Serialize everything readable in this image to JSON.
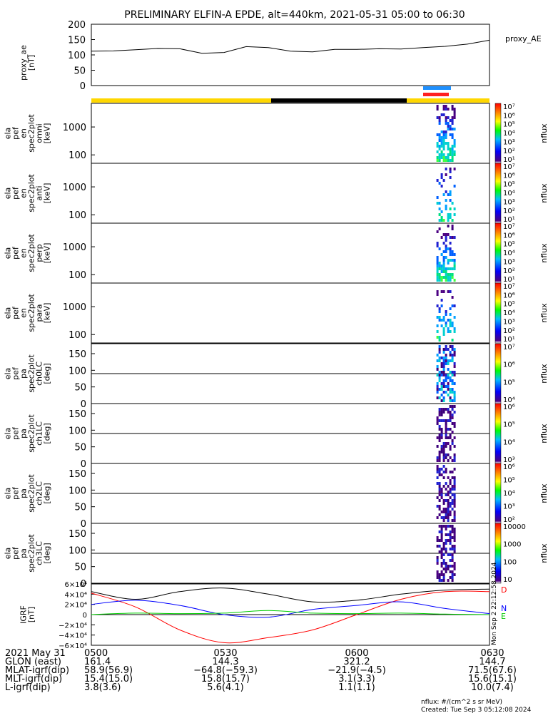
{
  "title": "PRELIMINARY ELFIN-A EPDE, alt=440km, 2021-05-31 05:00 to 06:30",
  "proxy_panel": {
    "ylabel": [
      "proxy_ae",
      "[nT]"
    ],
    "legend": "proxy_AE",
    "ticks": [
      "200",
      "150",
      "100",
      "50",
      "0"
    ]
  },
  "panels": [
    {
      "ylabel": [
        "ela",
        "pef",
        "en",
        "spec2plot",
        "omni",
        "[keV]"
      ],
      "ticks": [
        "1000",
        "100"
      ],
      "cbar_label": "nflux",
      "cbar_ticks": [
        "10⁷",
        "10⁶",
        "10⁵",
        "10⁴",
        "10³",
        "10²",
        "10¹"
      ]
    },
    {
      "ylabel": [
        "ela",
        "pef",
        "en",
        "spec2plot",
        "anti",
        "[keV]"
      ],
      "ticks": [
        "1000",
        "100"
      ],
      "cbar_label": "nflux",
      "cbar_ticks": [
        "10⁷",
        "10⁶",
        "10⁵",
        "10⁴",
        "10³",
        "10²",
        "10¹"
      ]
    },
    {
      "ylabel": [
        "ela",
        "pef",
        "en",
        "spec2plot",
        "perp",
        "[keV]"
      ],
      "ticks": [
        "1000",
        "100"
      ],
      "cbar_label": "nflux",
      "cbar_ticks": [
        "10⁷",
        "10⁶",
        "10⁵",
        "10⁴",
        "10³",
        "10²",
        "10¹"
      ]
    },
    {
      "ylabel": [
        "ela",
        "pef",
        "en",
        "spec2plot",
        "para",
        "[keV]"
      ],
      "ticks": [
        "1000",
        "100"
      ],
      "cbar_label": "nflux",
      "cbar_ticks": [
        "10⁷",
        "10⁶",
        "10⁵",
        "10⁴",
        "10³",
        "10²",
        "10¹"
      ]
    },
    {
      "ylabel": [
        "ela",
        "pef",
        "pa",
        "spec2plot",
        "ch0LC",
        "[deg]"
      ],
      "ticks": [
        "150",
        "100",
        "50",
        "0"
      ],
      "cbar_label": "nflux",
      "cbar_ticks": [
        "10⁷",
        "10⁶",
        "10⁵",
        "10⁴"
      ]
    },
    {
      "ylabel": [
        "ela",
        "pef",
        "pa",
        "spec2plot",
        "ch1LC",
        "[deg]"
      ],
      "ticks": [
        "150",
        "100",
        "50",
        "0"
      ],
      "cbar_label": "nflux",
      "cbar_ticks": [
        "10⁶",
        "10⁵",
        "10⁴",
        "10³"
      ]
    },
    {
      "ylabel": [
        "ela",
        "pef",
        "pa",
        "spec2plot",
        "ch2LC",
        "[deg]"
      ],
      "ticks": [
        "150",
        "100",
        "50",
        "0"
      ],
      "cbar_label": "nflux",
      "cbar_ticks": [
        "10⁶",
        "10⁵",
        "10⁴",
        "10³",
        "10²"
      ]
    },
    {
      "ylabel": [
        "ela",
        "pef",
        "pa",
        "spec2plot",
        "ch3LC",
        "[deg]"
      ],
      "ticks": [
        "150",
        "100",
        "50",
        "0"
      ],
      "cbar_label": "nflux",
      "cbar_ticks": [
        "10000",
        "1000",
        "100",
        "10"
      ]
    }
  ],
  "bfield_panel": {
    "ylabel": [
      "IGRF",
      "[nT]"
    ],
    "ticks": [
      "6×10⁴",
      "4×10⁴",
      "2×10⁴",
      "0",
      "−2×10⁴",
      "−4×10⁴",
      "−6×10⁴"
    ],
    "legend": [
      "D",
      "N",
      "E"
    ],
    "stamp": "Mon Sep  2 22:12:58 2024"
  },
  "footer": {
    "rows": [
      [
        "2021 May 31",
        "0500",
        "0530",
        "0600",
        "0630"
      ],
      [
        "GLON (east)",
        "161.4",
        "144.3",
        "321.2",
        "144.7"
      ],
      [
        "MLAT-igrf(dip)",
        "58.9(56.9)",
        "−64.8(−59.3)",
        "−21.9(−4.5)",
        "71.5(67.6)"
      ],
      [
        "MLT-igrf(dip)",
        "15.4(15.0)",
        "15.8(15.7)",
        "3.1(3.3)",
        "15.6(15.1)"
      ],
      [
        "L-igrf(dip)",
        "3.8(3.6)",
        "5.6(4.1)",
        "1.1(1.1)",
        "10.0(7.4)"
      ]
    ],
    "units_note": "nflux: #/(cm^2 s sr MeV)",
    "created": "Created: Tue Sep  3 05:12:08 2024"
  },
  "colors": {
    "sunlit_bar": "#ffd700",
    "shadow_bar": "#000000",
    "science_zone_blue": "#1e90ff",
    "science_zone_red": "#ff2020",
    "B_D": "#ff0000",
    "B_N": "#0000ff",
    "B_E": "#00cc00",
    "B_total": "#000000"
  },
  "chart_data": [
    {
      "type": "line",
      "name": "proxy_ae",
      "x_range": [
        "05:00",
        "06:30"
      ],
      "ylim": [
        0,
        200
      ],
      "x": [
        0,
        5,
        10,
        15,
        20,
        25,
        30,
        35,
        40,
        45,
        50,
        55,
        60,
        65,
        70,
        75,
        80,
        85,
        90
      ],
      "values": [
        112,
        113,
        117,
        121,
        120,
        105,
        108,
        127,
        124,
        112,
        110,
        118,
        118,
        120,
        119,
        124,
        128,
        135,
        148
      ]
    },
    {
      "type": "heatmap",
      "name": "ela pef spectrograms",
      "x_range": [
        "05:00",
        "06:30"
      ],
      "energy_ylim_keV": [
        50,
        7000
      ],
      "pa_ylim_deg": [
        0,
        180
      ],
      "activity_window_min": [
        78,
        82
      ],
      "colorscale": "rainbow",
      "scale": "log"
    },
    {
      "type": "line",
      "name": "IGRF",
      "x_range": [
        "05:00",
        "06:30"
      ],
      "ylim": [
        -60000,
        60000
      ],
      "x": [
        0,
        10,
        20,
        30,
        40,
        50,
        60,
        70,
        80,
        90
      ],
      "series": [
        {
          "name": "D",
          "values": [
            42000,
            15000,
            -30000,
            -55000,
            -45000,
            -30000,
            0,
            30000,
            45000,
            45000
          ]
        },
        {
          "name": "N",
          "values": [
            20000,
            28000,
            18000,
            0,
            -5000,
            10000,
            18000,
            25000,
            12000,
            2000
          ]
        },
        {
          "name": "E",
          "values": [
            0,
            3000,
            2000,
            3000,
            8000,
            3000,
            2000,
            3000,
            1000,
            0
          ]
        },
        {
          "name": "|B|",
          "values": [
            45000,
            30000,
            45000,
            52000,
            40000,
            25000,
            28000,
            40000,
            48000,
            50000
          ]
        }
      ]
    }
  ]
}
